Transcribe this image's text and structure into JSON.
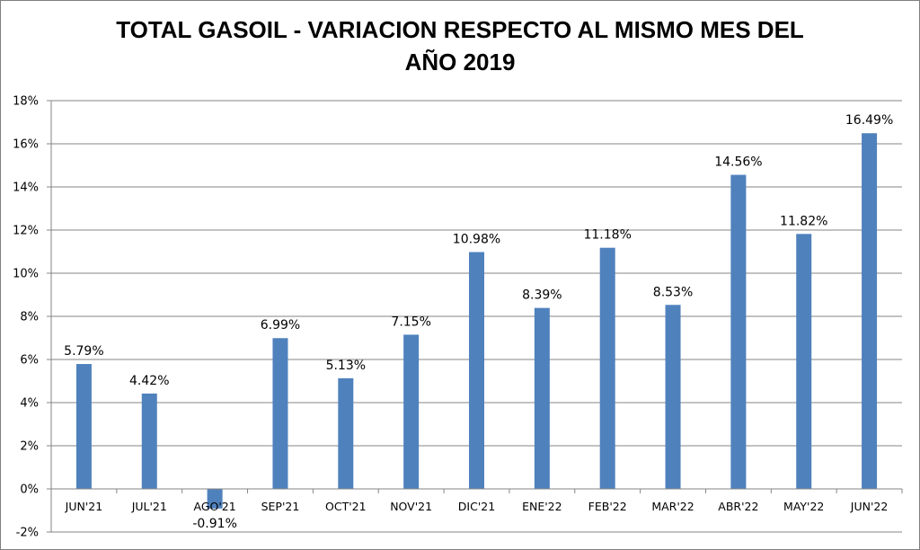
{
  "chart_data": {
    "type": "bar",
    "title_lines": [
      "TOTAL GASOIL - VARIACION RESPECTO AL MISMO MES DEL",
      "AÑO 2019"
    ],
    "categories": [
      "JUN'21",
      "JUL'21",
      "AGO'21",
      "SEP'21",
      "OCT'21",
      "NOV'21",
      "DIC'21",
      "ENE'22",
      "FEB'22",
      "MAR'22",
      "ABR'22",
      "MAY'22",
      "JUN'22"
    ],
    "values": [
      5.79,
      4.42,
      -0.91,
      6.99,
      5.13,
      7.15,
      10.98,
      8.39,
      11.18,
      8.53,
      14.56,
      11.82,
      16.49
    ],
    "data_labels": [
      "5.79%",
      "4.42%",
      "-0.91%",
      "6.99%",
      "5.13%",
      "7.15%",
      "10.98%",
      "8.39%",
      "11.18%",
      "8.53%",
      "14.56%",
      "11.82%",
      "16.49%"
    ],
    "ylim": [
      -2,
      18
    ],
    "yticks": [
      -2,
      0,
      2,
      4,
      6,
      8,
      10,
      12,
      14,
      16,
      18
    ],
    "ytick_labels": [
      "-2%",
      "0%",
      "2%",
      "4%",
      "6%",
      "8%",
      "10%",
      "12%",
      "14%",
      "16%",
      "18%"
    ],
    "grid": true,
    "legend": "none",
    "colors": {
      "bar": "#4f81bd",
      "grid": "#868686",
      "axis": "#868686"
    }
  }
}
